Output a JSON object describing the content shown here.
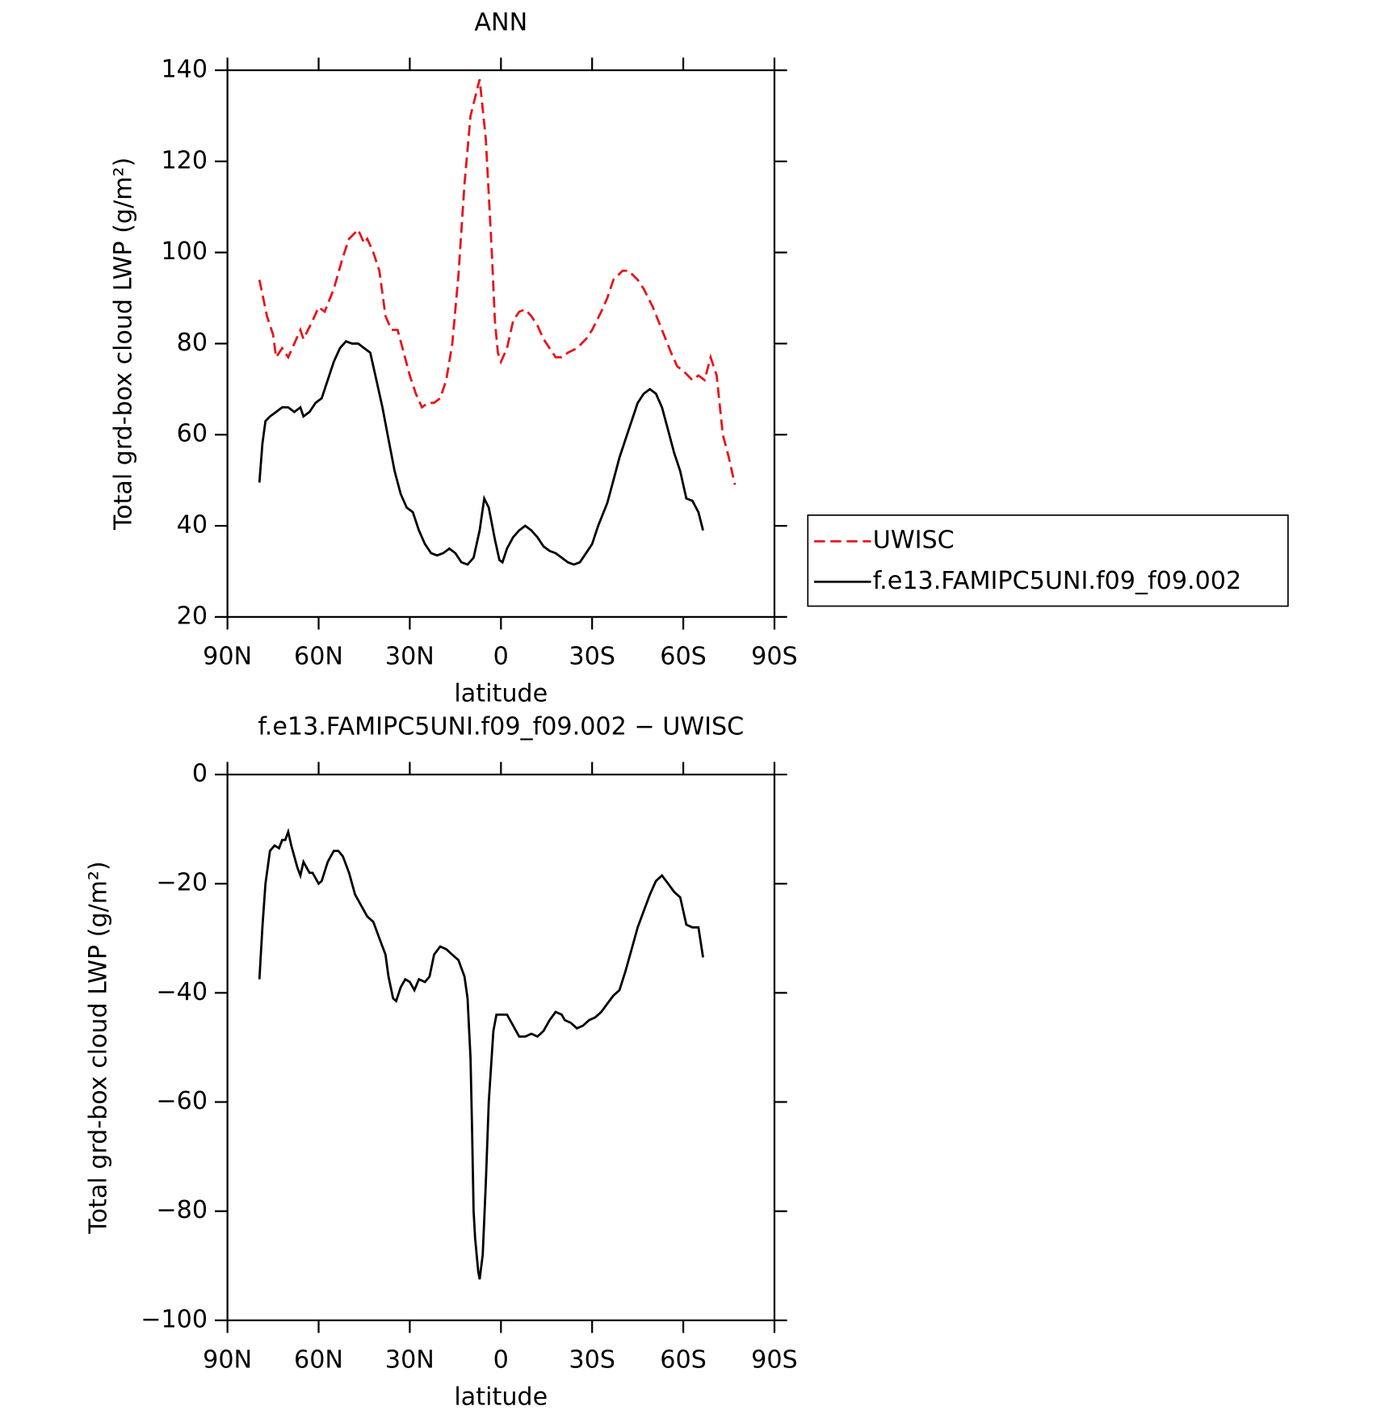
{
  "chart_data": [
    {
      "type": "line",
      "title": "ANN",
      "xlabel": "latitude",
      "ylabel": "Total grd-box cloud LWP (g/m²)",
      "xlim": [
        90,
        -90
      ],
      "ylim": [
        20,
        140
      ],
      "xticks": [
        {
          "value": 90,
          "label": "90N"
        },
        {
          "value": 60,
          "label": "60N"
        },
        {
          "value": 30,
          "label": "30N"
        },
        0,
        {
          "value": -30,
          "label": "30S"
        },
        {
          "value": -60,
          "label": "60S"
        },
        {
          "value": -90,
          "label": "90S"
        }
      ],
      "yticks": [
        20,
        40,
        60,
        80,
        100,
        120,
        140
      ],
      "legend": "right",
      "series": [
        {
          "name": "UWISC",
          "color": "#e8141a",
          "dash": true,
          "x": [
            79.5,
            77,
            75,
            74,
            72,
            70,
            68,
            66,
            65,
            62,
            60,
            58,
            55,
            52,
            50,
            47,
            45,
            44,
            42,
            40,
            38,
            36,
            34,
            32,
            30,
            28,
            26,
            24,
            22,
            20,
            18,
            16,
            14,
            12,
            10,
            7,
            5,
            3,
            2,
            1,
            0,
            -2,
            -4,
            -6,
            -8,
            -10,
            -12,
            -14,
            -16,
            -18,
            -20,
            -22,
            -25,
            -28,
            -30,
            -33,
            -35,
            -37,
            -40,
            -42,
            -45,
            -47,
            -50,
            -53,
            -56,
            -58,
            -60,
            -63,
            -65,
            -67,
            -69,
            -71,
            -73,
            -75,
            -77
          ],
          "values": [
            94,
            86,
            82,
            77,
            79,
            77,
            80,
            83,
            81,
            85,
            88,
            87,
            92,
            99,
            103,
            105,
            102,
            103,
            100,
            96,
            86,
            83,
            83,
            78,
            73,
            69,
            66,
            67,
            67,
            68,
            72,
            80,
            95,
            115,
            130,
            138,
            125,
            100,
            85,
            78,
            76,
            79,
            85,
            87,
            87.5,
            86,
            84,
            81,
            79,
            77,
            77,
            78,
            79,
            81,
            83,
            87,
            90,
            94,
            96,
            96,
            94,
            92,
            88,
            83,
            78,
            75,
            74,
            72,
            73,
            72,
            77,
            73,
            60,
            55,
            49
          ]
        },
        {
          "name": "f.e13.FAMIPC5UNI.f09_f09.002",
          "color": "#000000",
          "dash": false,
          "x": [
            79.5,
            78.5,
            77.5,
            76,
            74,
            72,
            70,
            68,
            66,
            65,
            63,
            61,
            59,
            57,
            55,
            53,
            51,
            49,
            47,
            45,
            43,
            41,
            39,
            37,
            35,
            33,
            31,
            29,
            27,
            25,
            23,
            21,
            19,
            17,
            15,
            13,
            11,
            9,
            7,
            5.5,
            4,
            2,
            0.5,
            -0.5,
            -2,
            -4,
            -6,
            -8,
            -10,
            -12,
            -14,
            -16,
            -18,
            -20,
            -22,
            -24,
            -26,
            -28,
            -30,
            -32,
            -35,
            -37,
            -39,
            -42,
            -45,
            -47,
            -49,
            -51,
            -53,
            -55,
            -57,
            -59,
            -61,
            -63,
            -65,
            -66.5
          ],
          "values": [
            49.5,
            58,
            63,
            64,
            65,
            66,
            66,
            65,
            66,
            64,
            65,
            67,
            68,
            72,
            76,
            79,
            80.5,
            80,
            80,
            79,
            78,
            72,
            66,
            59,
            52,
            47,
            44,
            43,
            39,
            36,
            34,
            33.5,
            34,
            35,
            34,
            32,
            31.5,
            33,
            39,
            46,
            44,
            37,
            32.5,
            32,
            35,
            37.5,
            39,
            40,
            39,
            37.5,
            35.5,
            34.5,
            34,
            33,
            32,
            31.5,
            32,
            34,
            36,
            40,
            45,
            50,
            55,
            61,
            67,
            69,
            70,
            69,
            66,
            61,
            56,
            52,
            46,
            45.5,
            43,
            39
          ]
        }
      ]
    },
    {
      "type": "line",
      "title": "f.e13.FAMIPC5UNI.f09_f09.002 − UWISC",
      "xlabel": "latitude",
      "ylabel": "Total grd-box cloud LWP (g/m²)",
      "xlim": [
        90,
        -90
      ],
      "ylim": [
        -100,
        0
      ],
      "xticks": [
        {
          "value": 90,
          "label": "90N"
        },
        {
          "value": 60,
          "label": "60N"
        },
        {
          "value": 30,
          "label": "30N"
        },
        0,
        {
          "value": -30,
          "label": "30S"
        },
        {
          "value": -60,
          "label": "60S"
        },
        {
          "value": -90,
          "label": "90S"
        }
      ],
      "yticks": [
        {
          "value": -100,
          "label": "−100"
        },
        {
          "value": -80,
          "label": "−80"
        },
        {
          "value": -60,
          "label": "−60"
        },
        {
          "value": -40,
          "label": "−40"
        },
        {
          "value": -20,
          "label": "−20"
        },
        0
      ],
      "series": [
        {
          "color": "#000000",
          "dash": false,
          "x": [
            79.5,
            78.5,
            77.5,
            76,
            74.5,
            73,
            72,
            71,
            70,
            69,
            67,
            66,
            65,
            63,
            62,
            60,
            59,
            57,
            55,
            53.5,
            52,
            50,
            48,
            46,
            44,
            42,
            40,
            38,
            37,
            35.5,
            34.5,
            33,
            31.5,
            30,
            28.5,
            27,
            25,
            23.5,
            22,
            20,
            18,
            16,
            14,
            12,
            11,
            10,
            9.5,
            9,
            8.5,
            7.5,
            7,
            6,
            5,
            4,
            2.5,
            1.5,
            0,
            -2,
            -4,
            -5,
            -6,
            -8,
            -10,
            -12,
            -14,
            -16,
            -18,
            -20,
            -21,
            -23,
            -25,
            -27,
            -29,
            -31,
            -33,
            -35,
            -37,
            -39,
            -41,
            -43,
            -45,
            -47,
            -49,
            -51,
            -53,
            -55,
            -57,
            -59,
            -61,
            -63,
            -65,
            -66.5
          ],
          "values": [
            -37.5,
            -28,
            -20,
            -14,
            -13,
            -13.5,
            -12,
            -12,
            -10.5,
            -13,
            -17,
            -18.5,
            -16,
            -18,
            -18,
            -20,
            -19.5,
            -16,
            -14,
            -14,
            -15,
            -18,
            -22,
            -24,
            -26,
            -27,
            -30,
            -33,
            -37,
            -41,
            -41.5,
            -39,
            -37.5,
            -38,
            -39.5,
            -37.5,
            -38,
            -37,
            -33,
            -31.5,
            -32,
            -33,
            -34,
            -37,
            -41,
            -52,
            -65,
            -80,
            -85,
            -91,
            -92.5,
            -88,
            -75,
            -60,
            -47,
            -44,
            -44,
            -44,
            -46,
            -47,
            -48,
            -48,
            -47.5,
            -48,
            -47,
            -45,
            -43.5,
            -44,
            -45,
            -45.5,
            -46.5,
            -46,
            -45,
            -44.5,
            -43.5,
            -42,
            -40.5,
            -39.5,
            -36,
            -32,
            -28,
            -25,
            -22,
            -19.5,
            -18.5,
            -20,
            -21.5,
            -22.5,
            -27.5,
            -28,
            -28,
            -33.5
          ]
        }
      ]
    }
  ]
}
